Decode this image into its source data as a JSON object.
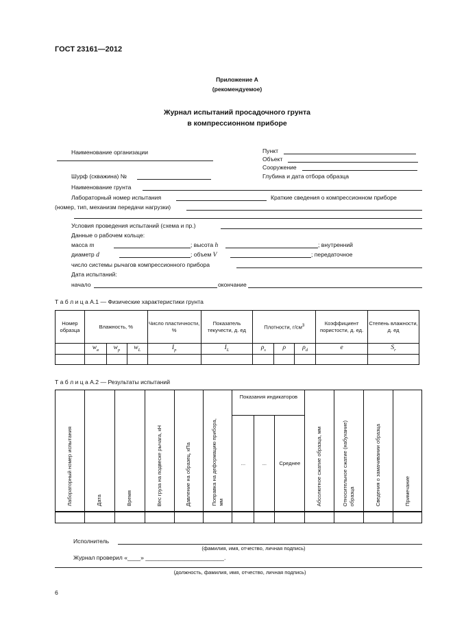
{
  "header": {
    "standard": "ГОСТ 23161—2012"
  },
  "appendix": {
    "title": "Приложение А",
    "note": "(рекомендуемое)"
  },
  "journal": {
    "title_line1": "Журнал испытаний просадочного грунта",
    "title_line2": "в компрессионном приборе"
  },
  "form": {
    "org": "Наименование организации",
    "punkt": "Пункт",
    "object": "Объект",
    "structure": "Сооружение",
    "depth_date": "Глубина и дата отбора образца",
    "pit": "Шурф (скважина) №",
    "soil_name": "Наименование грунта",
    "lab_number": "Лабораторный номер испытания",
    "device_info": "Краткие сведения о компрессионном приборе",
    "device_info_cont": "(номер, тип, механизм передачи нагрузки)",
    "conditions": "Условия проведения испытаний (схема и пр.)",
    "ring_data": "Данные о рабочем кольце:",
    "mass": "масса",
    "mass_sym": "m",
    "height": "; высота",
    "height_sym": "h",
    "inner": "; внутренний",
    "diameter": "диаметр",
    "diameter_sym": "d",
    "volume": ";  объем",
    "volume_sym": "V",
    "ratio": "; передаточное",
    "lever": "число системы рычагов компрессионного прибора",
    "test_dates": "Дата испытаний:",
    "start": "начало",
    "end": "окончание"
  },
  "table1": {
    "caption": "Т а б л и ц а  А.1 — Физические характеристики грунта",
    "headers": [
      "Номер образца",
      "Влажность, %",
      "Число пластичности, %",
      "Показатель текучести, д. ед",
      "Плотности, г/см",
      "Коэффициент пористости, д. ед.",
      "Степень влажности, д. ед"
    ],
    "density_sup": "3",
    "symbols": [
      {
        "s": "w",
        "sub": "в"
      },
      {
        "s": "w",
        "sub": "p"
      },
      {
        "s": "w",
        "sub": "L"
      },
      {
        "s": "I",
        "sub": "p"
      },
      {
        "s": "I",
        "sub": "L"
      },
      {
        "s": "ρ",
        "sub": "s"
      },
      {
        "s": "ρ",
        "sub": ""
      },
      {
        "s": "ρ",
        "sub": "d"
      },
      {
        "s": "e",
        "sub": ""
      },
      {
        "s": "S",
        "sub": "r"
      }
    ]
  },
  "table2": {
    "caption": "Т а б л и ц а  А.2 — Результаты испытаний",
    "headers": [
      "Лабораторный номер испытания",
      "Дата",
      "Время",
      "Вес груза на подвеске рычага, кН",
      "Давление на образец, кПа",
      "Поправка на деформацию прибора,",
      "мм",
      "Показания индикаторов",
      "...",
      "...",
      "Среднее",
      "Абсолютное сжатие образца, мм",
      "Относительное сжатие (набухание)",
      "образца",
      "Сведения о замачивании образца",
      "Примечание"
    ]
  },
  "signatures": {
    "executor": "Исполнитель",
    "executor_hint": "(фамилия, имя, отчество, личная подпись)",
    "checked": "Журнал проверил «____» ________________________.",
    "checked_hint": "(должность, фамилия, имя, отчество, личная подпись)"
  },
  "page_number": "6"
}
